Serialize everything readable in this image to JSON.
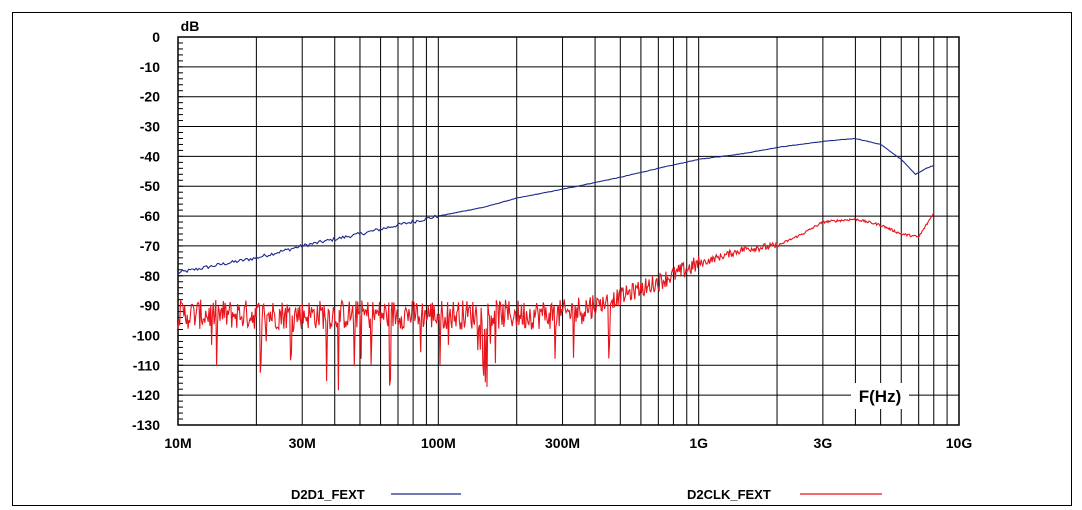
{
  "chart_data": {
    "type": "line",
    "title": "",
    "ylabel": "dB",
    "xlabel": "F(Hz)",
    "x_scale": "log",
    "xlim": [
      10000000,
      10000000000
    ],
    "ylim": [
      -130,
      0
    ],
    "grid": true,
    "legend_position": "bottom",
    "x_tick_labels": [
      "10M",
      "30M",
      "100M",
      "300M",
      "1G",
      "3G",
      "10G"
    ],
    "x_tick_values": [
      10000000,
      30000000,
      100000000,
      300000000,
      1000000000,
      3000000000,
      10000000000
    ],
    "y_tick_labels": [
      "0",
      "-10",
      "-20",
      "-30",
      "-40",
      "-50",
      "-60",
      "-70",
      "-80",
      "-90",
      "-100",
      "-110",
      "-120",
      "-130"
    ],
    "y_tick_values": [
      0,
      -10,
      -20,
      -30,
      -40,
      -50,
      -60,
      -70,
      -80,
      -90,
      -100,
      -110,
      -120,
      -130
    ],
    "series": [
      {
        "name": "D2D1_FEXT",
        "color": "#1c2a8c",
        "x": [
          10000000,
          15000000,
          20000000,
          30000000,
          50000000,
          70000000,
          100000000,
          150000000,
          200000000,
          300000000,
          500000000,
          700000000,
          1000000000,
          1500000000,
          2000000000,
          3000000000,
          4000000000,
          5000000000,
          6000000000,
          6800000000,
          7500000000,
          8000000000
        ],
        "y": [
          -79,
          -76,
          -74,
          -70,
          -66,
          -63,
          -60,
          -57,
          -54,
          -51,
          -47,
          -44,
          -41,
          -39,
          -37,
          -35,
          -34,
          -36,
          -41,
          -46,
          -44,
          -43
        ]
      },
      {
        "name": "D2CLK_FEXT",
        "color": "#e8141c",
        "x": [
          10000000,
          15000000,
          20000000,
          30000000,
          50000000,
          70000000,
          100000000,
          150000000,
          200000000,
          300000000,
          400000000,
          500000000,
          700000000,
          1000000000,
          1500000000,
          2000000000,
          2500000000,
          3000000000,
          4000000000,
          5000000000,
          6000000000,
          7000000000,
          8000000000
        ],
        "y": [
          -93,
          -93,
          -93,
          -93,
          -93,
          -93,
          -93,
          -93,
          -93,
          -93,
          -90,
          -87,
          -82,
          -76,
          -71,
          -70,
          -66,
          -62,
          -61,
          -63,
          -66,
          -67,
          -59
        ]
      }
    ]
  },
  "legend": [
    {
      "label": "D2D1_FEXT",
      "color": "#1c2a8c"
    },
    {
      "label": "D2CLK_FEXT",
      "color": "#e8141c"
    }
  ]
}
